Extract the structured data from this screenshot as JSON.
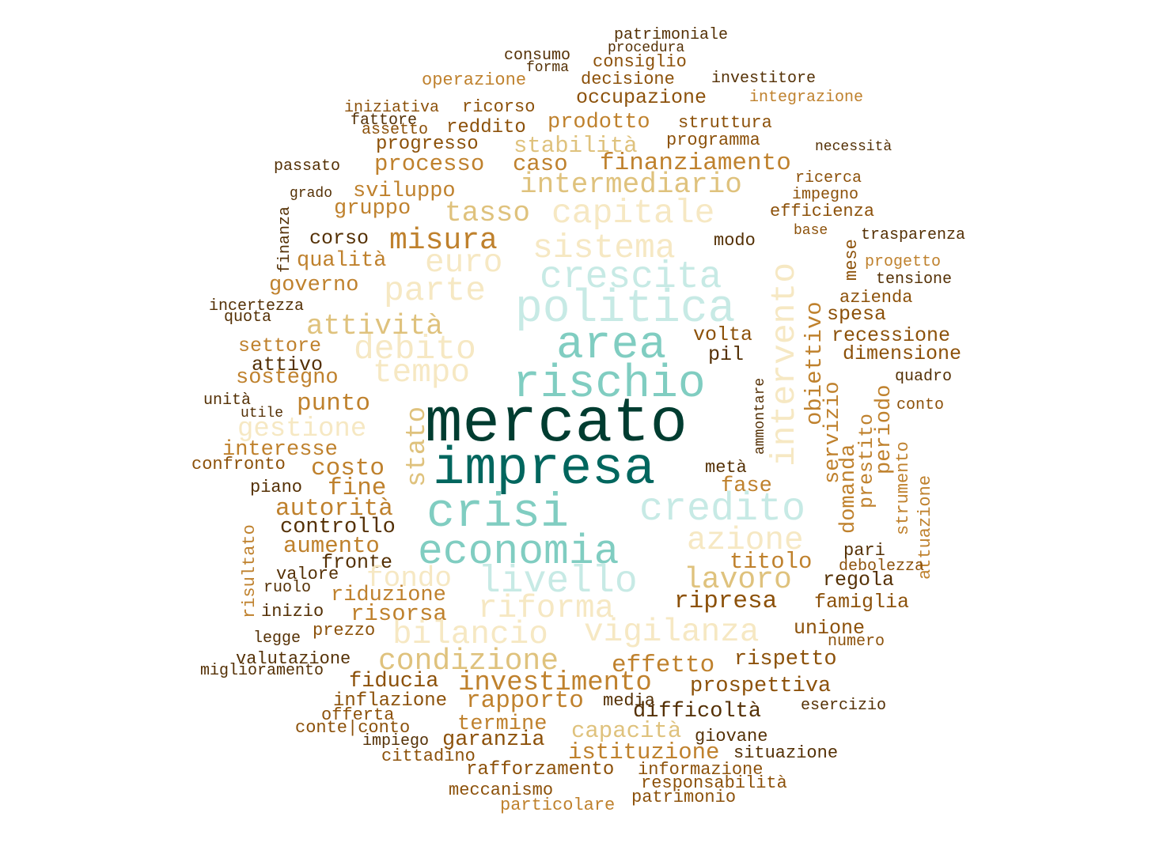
{
  "palette": [
    "#003c30",
    "#01665e",
    "#80cdc1",
    "#c7eae5",
    "#f6e8c3",
    "#dfc27d",
    "#bf812d",
    "#8c510a",
    "#543005"
  ],
  "words": [
    {
      "text": "patrimoniale"
    },
    {
      "text": "procedura"
    },
    {
      "text": "consumo"
    },
    {
      "text": "consiglio"
    },
    {
      "text": "forma"
    },
    {
      "text": "operazione"
    },
    {
      "text": "decisione"
    },
    {
      "text": "investitore"
    },
    {
      "text": "occupazione"
    },
    {
      "text": "integrazione"
    },
    {
      "text": "iniziativa"
    },
    {
      "text": "ricorso"
    },
    {
      "text": "fattore"
    },
    {
      "text": "assetto"
    },
    {
      "text": "reddito"
    },
    {
      "text": "prodotto"
    },
    {
      "text": "struttura"
    },
    {
      "text": "progresso"
    },
    {
      "text": "stabilità"
    },
    {
      "text": "programma"
    },
    {
      "text": "necessità"
    },
    {
      "text": "passato"
    },
    {
      "text": "processo"
    },
    {
      "text": "caso"
    },
    {
      "text": "finanziamento"
    },
    {
      "text": "ricerca"
    },
    {
      "text": "intermediario"
    },
    {
      "text": "impegno"
    },
    {
      "text": "grado"
    },
    {
      "text": "sviluppo"
    },
    {
      "text": "efficienza"
    },
    {
      "text": "gruppo"
    },
    {
      "text": "tasso"
    },
    {
      "text": "capitale"
    },
    {
      "text": "finanza"
    },
    {
      "text": "base"
    },
    {
      "text": "trasparenza"
    },
    {
      "text": "corso"
    },
    {
      "text": "misura"
    },
    {
      "text": "modo"
    },
    {
      "text": "mese"
    },
    {
      "text": "sistema"
    },
    {
      "text": "qualità"
    },
    {
      "text": "euro"
    },
    {
      "text": "progetto"
    },
    {
      "text": "intervento"
    },
    {
      "text": "crescita"
    },
    {
      "text": "tensione"
    },
    {
      "text": "governo"
    },
    {
      "text": "parte"
    },
    {
      "text": "azienda"
    },
    {
      "text": "incertezza"
    },
    {
      "text": "quota"
    },
    {
      "text": "politica"
    },
    {
      "text": "obiettivo"
    },
    {
      "text": "spesa"
    },
    {
      "text": "attività"
    },
    {
      "text": "recessione"
    },
    {
      "text": "volta"
    },
    {
      "text": "area"
    },
    {
      "text": "settore"
    },
    {
      "text": "debito"
    },
    {
      "text": "pil"
    },
    {
      "text": "dimensione"
    },
    {
      "text": "attivo"
    },
    {
      "text": "tempo"
    },
    {
      "text": "sostegno"
    },
    {
      "text": "quadro"
    },
    {
      "text": "rischio"
    },
    {
      "text": "ammontare"
    },
    {
      "text": "unità"
    },
    {
      "text": "punto"
    },
    {
      "text": "servizio"
    },
    {
      "text": "periodo"
    },
    {
      "text": "conto"
    },
    {
      "text": "utile"
    },
    {
      "text": "stato"
    },
    {
      "text": "mercato"
    },
    {
      "text": "gestione"
    },
    {
      "text": "prestito"
    },
    {
      "text": "interesse"
    },
    {
      "text": "strumento"
    },
    {
      "text": "confronto"
    },
    {
      "text": "costo"
    },
    {
      "text": "domanda"
    },
    {
      "text": "impresa"
    },
    {
      "text": "metà"
    },
    {
      "text": "attuazione"
    },
    {
      "text": "piano"
    },
    {
      "text": "fine"
    },
    {
      "text": "fase"
    },
    {
      "text": "autorità"
    },
    {
      "text": "crisi"
    },
    {
      "text": "credito"
    },
    {
      "text": "risultato"
    },
    {
      "text": "controllo"
    },
    {
      "text": "azione"
    },
    {
      "text": "aumento"
    },
    {
      "text": "economia"
    },
    {
      "text": "pari"
    },
    {
      "text": "fronte"
    },
    {
      "text": "titolo"
    },
    {
      "text": "debolezza"
    },
    {
      "text": "valore"
    },
    {
      "text": "fondo"
    },
    {
      "text": "livello"
    },
    {
      "text": "lavoro"
    },
    {
      "text": "regola"
    },
    {
      "text": "ruolo"
    },
    {
      "text": "riduzione"
    },
    {
      "text": "riforma"
    },
    {
      "text": "ripresa"
    },
    {
      "text": "famiglia"
    },
    {
      "text": "inizio"
    },
    {
      "text": "risorsa"
    },
    {
      "text": "prezzo"
    },
    {
      "text": "unione"
    },
    {
      "text": "legge"
    },
    {
      "text": "bilancio"
    },
    {
      "text": "vigilanza"
    },
    {
      "text": "numero"
    },
    {
      "text": "valutazione"
    },
    {
      "text": "condizione"
    },
    {
      "text": "rispetto"
    },
    {
      "text": "effetto"
    },
    {
      "text": "miglioramento"
    },
    {
      "text": "fiducia"
    },
    {
      "text": "investimento"
    },
    {
      "text": "prospettiva"
    },
    {
      "text": "inflazione"
    },
    {
      "text": "rapporto"
    },
    {
      "text": "media"
    },
    {
      "text": "difficoltà"
    },
    {
      "text": "esercizio"
    },
    {
      "text": "offerta"
    },
    {
      "text": "conte|conto"
    },
    {
      "text": "termine"
    },
    {
      "text": "capacità"
    },
    {
      "text": "impiego"
    },
    {
      "text": "garanzia"
    },
    {
      "text": "giovane"
    },
    {
      "text": "cittadino"
    },
    {
      "text": "istituzione"
    },
    {
      "text": "situazione"
    },
    {
      "text": "rafforzamento"
    },
    {
      "text": "informazione"
    },
    {
      "text": "responsabilità"
    },
    {
      "text": "meccanismo"
    },
    {
      "text": "patrimonio"
    },
    {
      "text": "particolare"
    }
  ]
}
